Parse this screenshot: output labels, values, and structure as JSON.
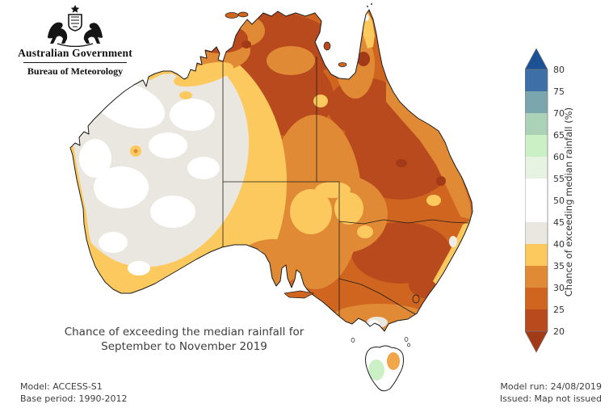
{
  "header": {
    "line1": "Australian Government",
    "line2": "Bureau of Meteorology"
  },
  "caption": {
    "line1": "Chance of exceeding the median rainfall for",
    "line2": "September to November 2019"
  },
  "footer": {
    "model": "Model: ACCESS-S1",
    "base_period": "Base period: 1990-2012",
    "model_run": "Model run: 24/08/2019",
    "issued": "Issued: Map not issued"
  },
  "chart_data": {
    "type": "heatmap",
    "title": "Chance of exceeding the median rainfall for September to November 2019",
    "legend_title": "Chance of exceeding median rainfall (%)",
    "legend_position": "right",
    "ticks": [
      80,
      75,
      70,
      65,
      60,
      55,
      50,
      45,
      40,
      35,
      30,
      25,
      20
    ],
    "segments": [
      {
        "range": ">80",
        "color": "#1d5196"
      },
      {
        "range": "75-80",
        "color": "#3e6fa6"
      },
      {
        "range": "70-75",
        "color": "#7ba6ad"
      },
      {
        "range": "65-70",
        "color": "#abd2b6"
      },
      {
        "range": "60-65",
        "color": "#cbf0c6"
      },
      {
        "range": "55-60",
        "color": "#e7f3e2"
      },
      {
        "range": "50-55",
        "color": "#ffffff"
      },
      {
        "range": "45-50",
        "color": "#ffffff"
      },
      {
        "range": "40-45",
        "color": "#eae6e0"
      },
      {
        "range": "35-40",
        "color": "#fcc95e"
      },
      {
        "range": "30-35",
        "color": "#e08a36"
      },
      {
        "range": "25-30",
        "color": "#d0651f"
      },
      {
        "range": "20-25",
        "color": "#b84a1e"
      },
      {
        "range": "<20",
        "color": "#a23a17"
      }
    ],
    "map_reading": {
      "most_of_mainland_east_and_north": "20-35% (orange to red-brown)",
      "western_australia_interior": "40-55% (white / light grey)",
      "southwest_wa_and_transition_band": "35-40% (yellow)",
      "cape_york_tip": "35-50% (yellow/white strip)",
      "western_tasmania": "55-65% (light green)",
      "eastern_tasmania": "30-40% (orange)"
    }
  }
}
